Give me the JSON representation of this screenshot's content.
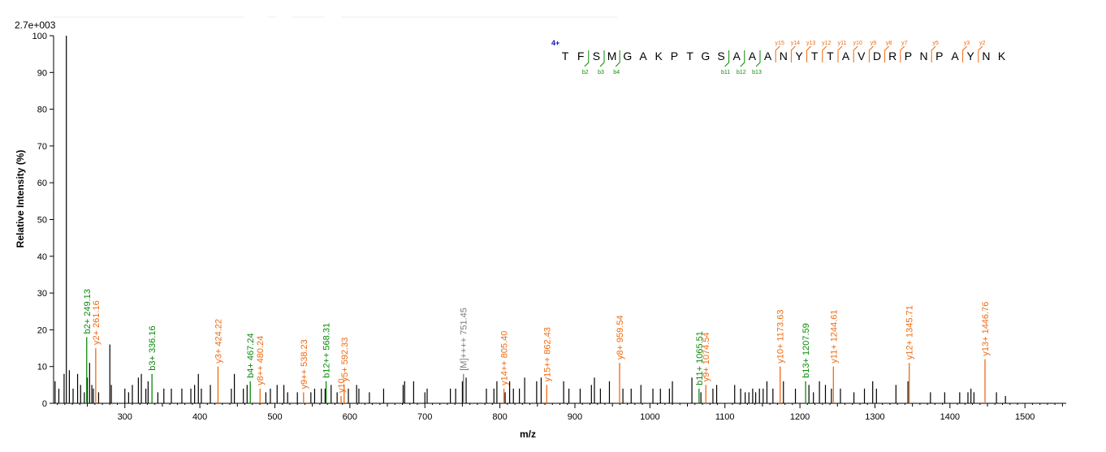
{
  "chart_data": {
    "type": "bar",
    "scale_label": "2.7e+003",
    "xlabel": "m/z",
    "ylabel": "Relative   Intensity (%)",
    "xlim": [
      205,
      1555
    ],
    "ylim": [
      0,
      100
    ],
    "x_ticks": [
      300,
      400,
      500,
      600,
      700,
      800,
      900,
      1000,
      1100,
      1200,
      1300,
      1400,
      1500
    ],
    "y_ticks": [
      0,
      10,
      20,
      30,
      40,
      50,
      60,
      70,
      80,
      90,
      100
    ],
    "colors": {
      "unmatched": "#000000",
      "b_ion": "#0a8a0a",
      "y_ion": "#f06a10",
      "precursor": "#7a7a7a",
      "charge": "#1010c0"
    },
    "peaks": [
      [
        207,
        6
      ],
      [
        212,
        4
      ],
      [
        219,
        8
      ],
      [
        222,
        100
      ],
      [
        226,
        9
      ],
      [
        231,
        4
      ],
      [
        237,
        8
      ],
      [
        241,
        5
      ],
      [
        246,
        3
      ],
      [
        250,
        7
      ],
      [
        253,
        11
      ],
      [
        256,
        5
      ],
      [
        258,
        4
      ],
      [
        265,
        3
      ],
      [
        280,
        16
      ],
      [
        282,
        5
      ],
      [
        300,
        4
      ],
      [
        305,
        3
      ],
      [
        310,
        5
      ],
      [
        318,
        7
      ],
      [
        322,
        8
      ],
      [
        328,
        4
      ],
      [
        331,
        6
      ],
      [
        344,
        3
      ],
      [
        352,
        4
      ],
      [
        362,
        4
      ],
      [
        376,
        4
      ],
      [
        388,
        4
      ],
      [
        393,
        5
      ],
      [
        398,
        8
      ],
      [
        402,
        4
      ],
      [
        414,
        5
      ],
      [
        442,
        4
      ],
      [
        446,
        8
      ],
      [
        458,
        4
      ],
      [
        463,
        5
      ],
      [
        488,
        3
      ],
      [
        494,
        4
      ],
      [
        503,
        5
      ],
      [
        512,
        5
      ],
      [
        517,
        3
      ],
      [
        530,
        3
      ],
      [
        548,
        3
      ],
      [
        553,
        4
      ],
      [
        562,
        4
      ],
      [
        567,
        4
      ],
      [
        575,
        5
      ],
      [
        583,
        3
      ],
      [
        598,
        4
      ],
      [
        609,
        5
      ],
      [
        612,
        4
      ],
      [
        626,
        3
      ],
      [
        645,
        4
      ],
      [
        671,
        5
      ],
      [
        673,
        6
      ],
      [
        685,
        6
      ],
      [
        700,
        3
      ],
      [
        703,
        4
      ],
      [
        734,
        4
      ],
      [
        741,
        4
      ],
      [
        750,
        6
      ],
      [
        755,
        7
      ],
      [
        782,
        4
      ],
      [
        792,
        4
      ],
      [
        796,
        6
      ],
      [
        807,
        3
      ],
      [
        813,
        6
      ],
      [
        818,
        4
      ],
      [
        826,
        4
      ],
      [
        833,
        7
      ],
      [
        849,
        6
      ],
      [
        855,
        7
      ],
      [
        885,
        6
      ],
      [
        892,
        4
      ],
      [
        907,
        4
      ],
      [
        922,
        5
      ],
      [
        926,
        7
      ],
      [
        934,
        4
      ],
      [
        946,
        6
      ],
      [
        964,
        4
      ],
      [
        975,
        4
      ],
      [
        988,
        5
      ],
      [
        1004,
        4
      ],
      [
        1014,
        4
      ],
      [
        1026,
        4
      ],
      [
        1030,
        6
      ],
      [
        1056,
        7
      ],
      [
        1068,
        3
      ],
      [
        1084,
        4
      ],
      [
        1089,
        5
      ],
      [
        1113,
        5
      ],
      [
        1121,
        4
      ],
      [
        1127,
        3
      ],
      [
        1132,
        3
      ],
      [
        1137,
        4
      ],
      [
        1141,
        3
      ],
      [
        1146,
        4
      ],
      [
        1151,
        4
      ],
      [
        1156,
        6
      ],
      [
        1164,
        4
      ],
      [
        1178,
        6
      ],
      [
        1194,
        4
      ],
      [
        1212,
        5
      ],
      [
        1218,
        3
      ],
      [
        1226,
        6
      ],
      [
        1234,
        5
      ],
      [
        1242,
        4
      ],
      [
        1254,
        4
      ],
      [
        1272,
        3
      ],
      [
        1286,
        4
      ],
      [
        1297,
        6
      ],
      [
        1302,
        4
      ],
      [
        1328,
        5
      ],
      [
        1344,
        6
      ],
      [
        1374,
        3
      ],
      [
        1393,
        3
      ],
      [
        1413,
        3
      ],
      [
        1424,
        3
      ],
      [
        1428,
        4
      ],
      [
        1432,
        3
      ],
      [
        1462,
        3
      ],
      [
        1474,
        2
      ]
    ],
    "annotated_peaks": [
      {
        "mz": 249.13,
        "intensity": 18,
        "label": "b2+ 249.13",
        "ion": "b"
      },
      {
        "mz": 261.16,
        "intensity": 15,
        "label": "y2+ 261.16",
        "ion": "y"
      },
      {
        "mz": 336.16,
        "intensity": 8,
        "label": "b3+ 336.16",
        "ion": "b"
      },
      {
        "mz": 424.22,
        "intensity": 10,
        "label": "y3+ 424.22",
        "ion": "y"
      },
      {
        "mz": 467.24,
        "intensity": 6,
        "label": "b4+ 467.24",
        "ion": "b"
      },
      {
        "mz": 480.24,
        "intensity": 4,
        "label": "y8++ 480.24",
        "ion": "y"
      },
      {
        "mz": 538.23,
        "intensity": 3,
        "label": "y9++ 538.23",
        "ion": "y"
      },
      {
        "mz": 568.31,
        "intensity": 6,
        "label": "b12++ 568.31",
        "ion": "b"
      },
      {
        "mz": 588.3,
        "intensity": 2,
        "label": "y10",
        "ion": "y"
      },
      {
        "mz": 592.33,
        "intensity": 5,
        "label": "y5+ 592.33",
        "ion": "y"
      },
      {
        "mz": 751.45,
        "intensity": 8,
        "label": "[M]++++ 751.45",
        "ion": "p"
      },
      {
        "mz": 805.4,
        "intensity": 4,
        "label": "y14++ 805.40",
        "ion": "y"
      },
      {
        "mz": 862.43,
        "intensity": 5,
        "label": "y15++ 862.43",
        "ion": "y"
      },
      {
        "mz": 959.54,
        "intensity": 11,
        "label": "y8+ 959.54",
        "ion": "y"
      },
      {
        "mz": 1065.51,
        "intensity": 4,
        "label": "b11+ 1065.51",
        "ion": "b"
      },
      {
        "mz": 1074.54,
        "intensity": 5,
        "label": "y9+ 1074.54",
        "ion": "y"
      },
      {
        "mz": 1173.63,
        "intensity": 10,
        "label": "y10+ 1173.63",
        "ion": "y"
      },
      {
        "mz": 1207.59,
        "intensity": 6,
        "label": "b13+ 1207.59",
        "ion": "b"
      },
      {
        "mz": 1244.61,
        "intensity": 10,
        "label": "y11+ 1244.61",
        "ion": "y"
      },
      {
        "mz": 1345.71,
        "intensity": 11,
        "label": "y12+ 1345.71",
        "ion": "y"
      },
      {
        "mz": 1446.76,
        "intensity": 12,
        "label": "y13+ 1446.76",
        "ion": "y"
      }
    ],
    "peptide": {
      "charge": "4+",
      "sequence": [
        "T",
        "F",
        "S",
        "M",
        "G",
        "A",
        "K",
        "P",
        "T",
        "G",
        "S",
        "A",
        "A",
        "A",
        "N",
        "Y",
        "T",
        "T",
        "A",
        "V",
        "D",
        "R",
        "P",
        "N",
        "P",
        "A",
        "Y",
        "N",
        "K"
      ],
      "b_ions": [
        {
          "label": "b2",
          "after": 1
        },
        {
          "label": "b3",
          "after": 2
        },
        {
          "label": "b4",
          "after": 3
        },
        {
          "label": "b11",
          "after": 10
        },
        {
          "label": "b12",
          "after": 11
        },
        {
          "label": "b13",
          "after": 12
        }
      ],
      "y_ions": [
        {
          "label": "y15",
          "before": 14
        },
        {
          "label": "y14",
          "before": 15
        },
        {
          "label": "y13",
          "before": 16
        },
        {
          "label": "y12",
          "before": 17
        },
        {
          "label": "y11",
          "before": 18
        },
        {
          "label": "y10",
          "before": 19
        },
        {
          "label": "y9",
          "before": 20
        },
        {
          "label": "y8",
          "before": 21
        },
        {
          "label": "y7",
          "before": 22
        },
        {
          "label": "y5",
          "before": 24
        },
        {
          "label": "y3",
          "before": 26
        },
        {
          "label": "y2",
          "before": 27
        }
      ]
    }
  }
}
